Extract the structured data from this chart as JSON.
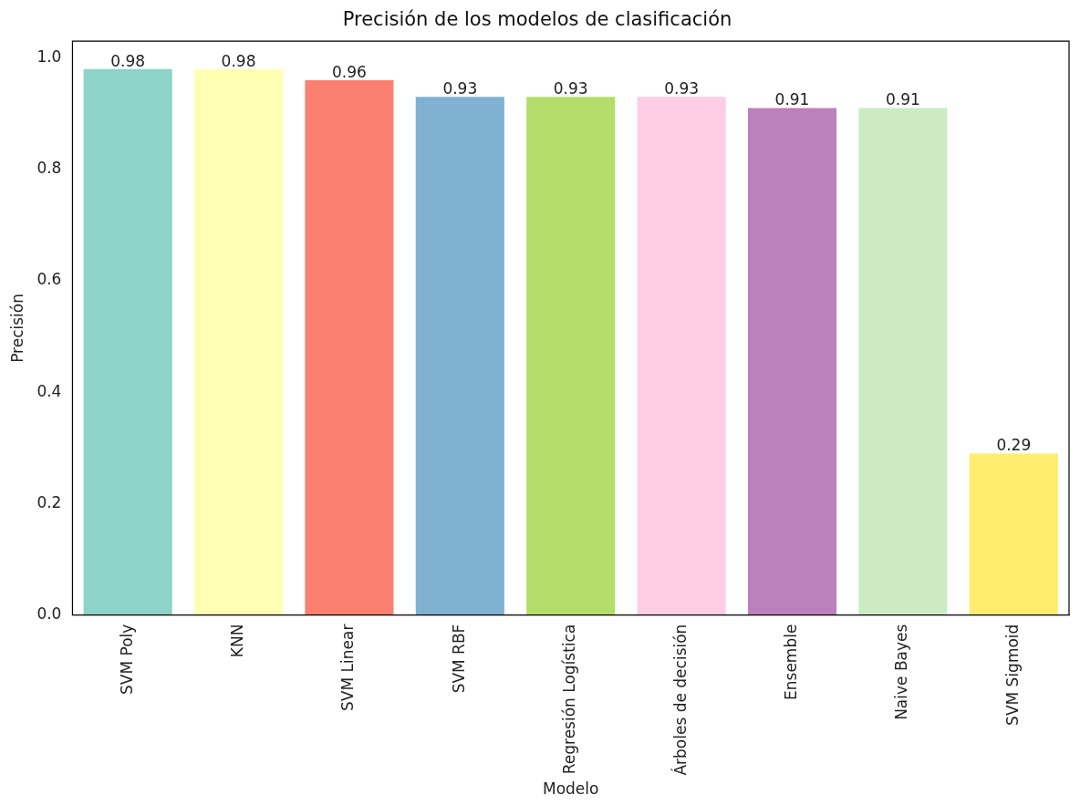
{
  "chart_data": {
    "type": "bar",
    "title": "Precisión de los modelos de clasificación",
    "xlabel": "Modelo",
    "ylabel": "Precisión",
    "categories": [
      "SVM Poly",
      "KNN",
      "SVM Linear",
      "SVM RBF",
      "Regresión Logística",
      "Árboles de decisión",
      "Ensemble",
      "Naive Bayes",
      "SVM Sigmoid"
    ],
    "values": [
      0.98,
      0.98,
      0.96,
      0.93,
      0.93,
      0.93,
      0.91,
      0.91,
      0.29
    ],
    "colors": [
      "#8dd3c7",
      "#ffffb3",
      "#fb8072",
      "#80b1d3",
      "#b3de69",
      "#fccde5",
      "#bc80bd",
      "#ccebc5",
      "#ffed6f"
    ],
    "ylim": [
      0,
      1.03
    ],
    "yticks": [
      {
        "value": 0,
        "label": "0.0"
      },
      {
        "value": 0.2,
        "label": "0.2"
      },
      {
        "value": 0.4,
        "label": "0.4"
      },
      {
        "value": 0.6,
        "label": "0.6"
      },
      {
        "value": 0.8,
        "label": "0.8"
      },
      {
        "value": 1,
        "label": "1.0"
      }
    ],
    "data_labels": true,
    "grid": false,
    "legend": false
  }
}
